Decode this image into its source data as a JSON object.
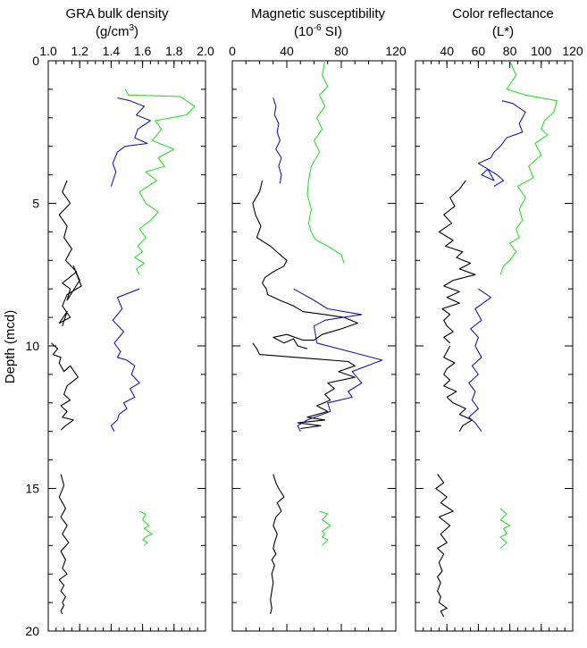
{
  "figure": {
    "ylabel": "Depth (mcd)",
    "ylim": [
      0,
      20
    ],
    "yticks": [
      "0",
      "5",
      "10",
      "15",
      "20"
    ],
    "yminor_step": 1,
    "colors": {
      "black": "#000000",
      "blue": "#1a1aa8",
      "green": "#33dd33"
    }
  },
  "chart_data": [
    {
      "type": "line",
      "title": "GRA bulk density",
      "unit": "(g/cm3)",
      "unit_base": "(g/cm",
      "unit_sup": "3",
      "unit_tail": ")",
      "xlim": [
        1.0,
        2.0
      ],
      "xticks": [
        "1.0",
        "1.2",
        "1.4",
        "1.6",
        "1.8",
        "2.0"
      ],
      "x_minor_step": 0.05,
      "ylim": [
        0,
        20
      ],
      "y_inverted": true,
      "series": [
        {
          "color": "black",
          "x": [
            1.12,
            1.09,
            1.14,
            1.07,
            1.12,
            1.1,
            1.15,
            1.11,
            1.18,
            1.09,
            1.14,
            1.12,
            1.2,
            1.16,
            1.21,
            1.12,
            1.09,
            1.14,
            1.07,
            1.12,
            1.09
          ],
          "y": [
            4.2,
            4.6,
            5.0,
            5.4,
            5.8,
            6.2,
            6.6,
            7.0,
            7.4,
            7.8,
            8.0,
            8.4,
            7.7,
            7.2,
            7.9,
            8.2,
            8.6,
            9.0,
            9.2,
            8.8,
            9.3
          ]
        },
        {
          "color": "black",
          "x": [
            1.02,
            1.06,
            1.03,
            1.08,
            1.07,
            1.1,
            1.14,
            1.19,
            1.12,
            1.1,
            1.14,
            1.08,
            1.12,
            1.09,
            1.16,
            1.11,
            1.08
          ],
          "y": [
            9.9,
            10.1,
            10.3,
            10.4,
            10.6,
            10.9,
            10.7,
            11.1,
            11.4,
            11.7,
            11.9,
            12.1,
            12.3,
            12.5,
            12.6,
            12.8,
            12.95
          ]
        },
        {
          "color": "black",
          "x": [
            1.08,
            1.1,
            1.07,
            1.11,
            1.08,
            1.12,
            1.09,
            1.13,
            1.08,
            1.11,
            1.09,
            1.12,
            1.07,
            1.1,
            1.08,
            1.11,
            1.09,
            1.1,
            1.08,
            1.09
          ],
          "y": [
            14.5,
            14.9,
            15.3,
            15.7,
            16.0,
            16.3,
            16.6,
            16.9,
            17.2,
            17.5,
            17.8,
            18.0,
            18.2,
            18.4,
            18.6,
            18.8,
            19.0,
            19.1,
            19.3,
            19.4
          ]
        },
        {
          "color": "blue",
          "x": [
            1.44,
            1.52,
            1.61,
            1.56,
            1.65,
            1.57,
            1.55,
            1.63,
            1.49,
            1.44,
            1.41,
            1.43,
            1.4
          ],
          "y": [
            1.3,
            1.4,
            1.6,
            1.9,
            2.1,
            2.4,
            2.7,
            2.9,
            3.0,
            3.2,
            3.6,
            3.9,
            4.4
          ]
        },
        {
          "color": "blue",
          "x": [
            1.58,
            1.44,
            1.47,
            1.41,
            1.48,
            1.42,
            1.46,
            1.44,
            1.5,
            1.55,
            1.53,
            1.58,
            1.52,
            1.55,
            1.48,
            1.5,
            1.45,
            1.44,
            1.4,
            1.42
          ],
          "y": [
            8.0,
            8.3,
            8.7,
            9.1,
            9.5,
            9.9,
            10.2,
            10.4,
            10.5,
            10.7,
            11.0,
            11.3,
            11.5,
            11.8,
            12.0,
            12.2,
            12.4,
            12.6,
            12.8,
            13.0
          ]
        },
        {
          "color": "green",
          "x": [
            1.49,
            1.51,
            1.84,
            1.93,
            1.88,
            1.68,
            1.72,
            1.66,
            1.8,
            1.7,
            1.74,
            1.62,
            1.69,
            1.58,
            1.62,
            1.7,
            1.65,
            1.58,
            1.62,
            1.57,
            1.6,
            1.55,
            1.61,
            1.56,
            1.58
          ],
          "y": [
            1.0,
            1.2,
            1.25,
            1.6,
            1.9,
            2.1,
            2.4,
            2.8,
            3.1,
            3.4,
            3.7,
            3.9,
            4.2,
            4.6,
            5.0,
            5.3,
            5.6,
            5.9,
            6.2,
            6.5,
            6.7,
            6.9,
            7.1,
            7.3,
            7.5
          ]
        },
        {
          "color": "green",
          "x": [
            1.58,
            1.62,
            1.6,
            1.64,
            1.61,
            1.66,
            1.62,
            1.6,
            1.63,
            1.61
          ],
          "y": [
            15.8,
            15.9,
            16.1,
            16.3,
            16.4,
            16.6,
            16.7,
            16.8,
            16.9,
            17.0
          ]
        }
      ]
    },
    {
      "type": "line",
      "title": "Magnetic susceptibility",
      "unit": "(10-6 SI)",
      "unit_base": "(10",
      "unit_sup": "-6",
      "unit_tail": " SI)",
      "xlim": [
        0,
        120
      ],
      "xticks": [
        "0",
        "40",
        "80",
        "120"
      ],
      "x_minor_step": 10,
      "ylim": [
        0,
        20
      ],
      "y_inverted": true,
      "series": [
        {
          "color": "black",
          "x": [
            22,
            20,
            15,
            17,
            21,
            18,
            28,
            35,
            40,
            38,
            30,
            24,
            22,
            25,
            26,
            35,
            45,
            52,
            68,
            82,
            92,
            80,
            66,
            60,
            52,
            40,
            30,
            38,
            45,
            48,
            55
          ],
          "y": [
            4.2,
            4.6,
            5.0,
            5.4,
            5.8,
            6.2,
            6.5,
            6.8,
            7.0,
            7.2,
            7.4,
            7.6,
            7.8,
            8.0,
            8.2,
            8.4,
            8.6,
            8.8,
            8.9,
            9.0,
            9.2,
            9.4,
            9.6,
            9.8,
            9.8,
            9.6,
            9.7,
            9.9,
            9.75,
            10.0,
            10.1
          ]
        },
        {
          "color": "black",
          "x": [
            15,
            18,
            20,
            60,
            85,
            90,
            78,
            90,
            70,
            75,
            68,
            72,
            62,
            70,
            55,
            68,
            48,
            65,
            50
          ],
          "y": [
            9.9,
            10.1,
            10.3,
            10.45,
            10.55,
            10.7,
            10.9,
            11.1,
            11.3,
            11.5,
            11.7,
            11.9,
            12.1,
            12.3,
            12.5,
            12.6,
            12.7,
            12.8,
            12.9
          ]
        },
        {
          "color": "black",
          "x": [
            30,
            32,
            34,
            38,
            33,
            36,
            32,
            30,
            33,
            31,
            30,
            32,
            29,
            31,
            29,
            30,
            29,
            28,
            29,
            28
          ],
          "y": [
            14.5,
            14.8,
            15.0,
            15.3,
            15.5,
            15.8,
            16.0,
            16.3,
            16.6,
            16.9,
            17.1,
            17.3,
            17.5,
            17.7,
            18.0,
            18.3,
            18.6,
            18.9,
            19.2,
            19.4
          ]
        },
        {
          "color": "blue",
          "x": [
            30,
            32,
            31,
            34,
            33,
            35,
            32,
            36,
            34,
            36,
            35
          ],
          "y": [
            1.3,
            1.6,
            1.9,
            2.2,
            2.5,
            2.8,
            3.1,
            3.4,
            3.7,
            4.0,
            4.3
          ]
        },
        {
          "color": "blue",
          "x": [
            45,
            60,
            70,
            95,
            68,
            60,
            62,
            110,
            88,
            95,
            85,
            88,
            70,
            72,
            55,
            48,
            50
          ],
          "y": [
            8.0,
            8.4,
            8.7,
            8.9,
            9.1,
            9.3,
            9.9,
            10.5,
            10.9,
            11.3,
            11.6,
            11.8,
            12.0,
            12.3,
            12.6,
            12.8,
            13.0
          ]
        },
        {
          "color": "green",
          "x": [
            68,
            66,
            70,
            64,
            68,
            62,
            66,
            60,
            64,
            58,
            56,
            55,
            58,
            56,
            58,
            60,
            62,
            70,
            80,
            82
          ],
          "y": [
            0.0,
            0.5,
            0.9,
            1.2,
            1.6,
            2.0,
            2.4,
            2.8,
            3.2,
            3.7,
            4.2,
            4.7,
            5.2,
            5.7,
            6.0,
            6.2,
            6.3,
            6.5,
            6.8,
            7.1
          ]
        },
        {
          "color": "green",
          "x": [
            64,
            70,
            66,
            72,
            66,
            68,
            66,
            70,
            66
          ],
          "y": [
            15.8,
            15.9,
            16.1,
            16.3,
            16.5,
            16.6,
            16.7,
            16.8,
            17.0
          ]
        }
      ]
    },
    {
      "type": "line",
      "title": "Color reflectance",
      "unit": "(L*)",
      "unit_base": "(L*)",
      "unit_sup": "",
      "unit_tail": "",
      "xlim": [
        20,
        120
      ],
      "xticks": [
        "40",
        "60",
        "80",
        "100",
        "120"
      ],
      "x_minor_step": 5,
      "ylim": [
        0,
        20
      ],
      "y_inverted": true,
      "series": [
        {
          "color": "black",
          "x": [
            52,
            48,
            42,
            45,
            38,
            43,
            35,
            44,
            39,
            50,
            46,
            55,
            48,
            58,
            44,
            38,
            48,
            40,
            48,
            37,
            42,
            38,
            40,
            44,
            38,
            42
          ],
          "y": [
            4.2,
            4.5,
            4.8,
            5.1,
            5.4,
            5.7,
            6.0,
            6.3,
            6.5,
            6.7,
            6.9,
            7.1,
            7.3,
            7.5,
            7.7,
            7.9,
            8.1,
            8.3,
            8.5,
            8.7,
            8.9,
            9.1,
            9.3,
            9.5,
            9.7,
            9.9
          ]
        },
        {
          "color": "black",
          "x": [
            42,
            40,
            38,
            45,
            40,
            38,
            42,
            38,
            46,
            40,
            44,
            52,
            48,
            56,
            50,
            48
          ],
          "y": [
            10.0,
            10.2,
            10.4,
            10.6,
            10.8,
            11.0,
            11.2,
            11.4,
            11.6,
            11.8,
            12.0,
            12.2,
            12.4,
            12.6,
            12.8,
            13.0
          ]
        },
        {
          "color": "black",
          "x": [
            34,
            38,
            33,
            40,
            36,
            44,
            35,
            42,
            36,
            40,
            34,
            38,
            35,
            37,
            34,
            36,
            34,
            36,
            35,
            40,
            36,
            38
          ],
          "y": [
            14.5,
            14.8,
            15.0,
            15.3,
            15.5,
            15.8,
            16.0,
            16.3,
            16.6,
            16.9,
            17.1,
            17.3,
            17.6,
            17.9,
            18.1,
            18.3,
            18.6,
            18.8,
            19.0,
            19.2,
            19.3,
            19.5
          ]
        },
        {
          "color": "blue",
          "x": [
            75,
            82,
            90,
            86,
            88,
            78,
            74,
            70,
            68,
            60,
            66,
            62,
            70,
            66,
            72,
            76,
            70
          ],
          "y": [
            1.4,
            1.5,
            1.8,
            2.2,
            2.5,
            2.7,
            3.0,
            3.2,
            3.4,
            3.6,
            3.8,
            4.0,
            4.2,
            3.8,
            4.0,
            4.2,
            4.4
          ]
        },
        {
          "color": "blue",
          "x": [
            60,
            68,
            58,
            62,
            55,
            60,
            58,
            62,
            56,
            60,
            54,
            58,
            56,
            60,
            54,
            58,
            62
          ],
          "y": [
            8.0,
            8.3,
            8.7,
            9.1,
            9.4,
            9.7,
            10.0,
            10.4,
            10.7,
            11.0,
            11.3,
            11.6,
            11.9,
            12.2,
            12.5,
            12.7,
            13.0
          ]
        },
        {
          "color": "green",
          "x": [
            80,
            84,
            78,
            90,
            110,
            108,
            102,
            100,
            104,
            96,
            100,
            92,
            95,
            85,
            90,
            86,
            88,
            84,
            86,
            80,
            84,
            80,
            76,
            74
          ],
          "y": [
            0.0,
            0.5,
            1.0,
            1.2,
            1.4,
            1.8,
            2.1,
            2.4,
            2.6,
            2.9,
            3.3,
            3.7,
            4.1,
            4.4,
            4.8,
            5.2,
            5.6,
            5.9,
            6.2,
            6.4,
            6.7,
            7.0,
            7.2,
            7.5
          ]
        },
        {
          "color": "green",
          "x": [
            74,
            78,
            74,
            80,
            76,
            78,
            74,
            78,
            74
          ],
          "y": [
            15.7,
            15.9,
            16.1,
            16.3,
            16.4,
            16.6,
            16.7,
            16.9,
            17.1
          ]
        }
      ]
    }
  ]
}
